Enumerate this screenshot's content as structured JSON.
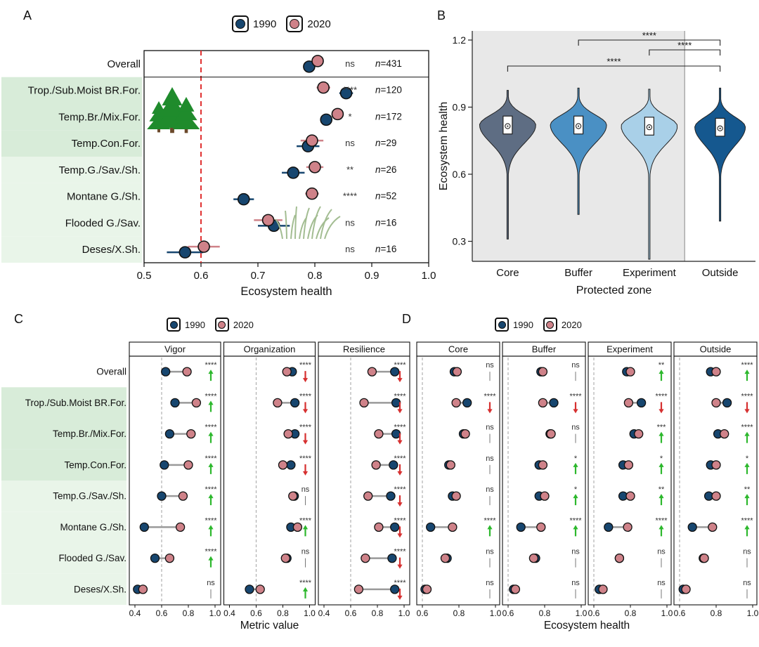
{
  "figure": {
    "panel_labels": {
      "A": "A",
      "B": "B",
      "C": "C",
      "D": "D"
    },
    "legend": {
      "y1990": "1990",
      "y2020": "2020"
    },
    "icons": {
      "forest": "forest-icon",
      "grassland": "grassland-icon"
    },
    "colors": {
      "c1990": "#17466f",
      "c2020": "#cf8289",
      "dotStroke": "#111111",
      "refRed": "#e03131",
      "bandForest": "#d8ecd9",
      "bandGrass": "#e9f5e9",
      "dumbbellLine": "#9a9a9a",
      "sigText": "#333333",
      "arrowUp": "#2db82d",
      "arrowDown": "#d63030",
      "grayBg": "#e8e8e8",
      "violin": {
        "core": "#5e6d83",
        "buffer": "#4a90c4",
        "experiment": "#a9d0e8",
        "outside": "#15588f"
      }
    }
  },
  "chart_data": [
    {
      "id": "A",
      "type": "scatter",
      "xlabel": "Ecosystem health",
      "xlim": [
        0.5,
        1.0
      ],
      "xticks": [
        "0.5",
        "0.6",
        "0.7",
        "0.8",
        "0.9",
        "1.0"
      ],
      "refline": 0.6,
      "series_labels": [
        "1990",
        "2020"
      ],
      "rows": [
        {
          "category": "Overall",
          "band": "none",
          "v1990": 0.79,
          "err1990": 0.008,
          "v2020": 0.805,
          "err2020": 0.008,
          "sig": "ns",
          "n": "431"
        },
        {
          "category": "Trop./Sub.Moist BR.For.",
          "band": "forest",
          "v1990": 0.855,
          "err1990": 0.012,
          "v2020": 0.815,
          "err2020": 0.012,
          "sig": "****",
          "n": "120"
        },
        {
          "category": "Temp.Br./Mix.For.",
          "band": "forest",
          "v1990": 0.82,
          "err1990": 0.01,
          "v2020": 0.84,
          "err2020": 0.01,
          "sig": "*",
          "n": "172"
        },
        {
          "category": "Temp.Con.For.",
          "band": "forest",
          "v1990": 0.788,
          "err1990": 0.02,
          "v2020": 0.795,
          "err2020": 0.02,
          "sig": "ns",
          "n": "29"
        },
        {
          "category": "Temp.G./Sav./Sh.",
          "band": "grass",
          "v1990": 0.762,
          "err1990": 0.02,
          "v2020": 0.8,
          "err2020": 0.015,
          "sig": "**",
          "n": "26"
        },
        {
          "category": "Montane G./Sh.",
          "band": "grass",
          "v1990": 0.675,
          "err1990": 0.018,
          "v2020": 0.795,
          "err2020": 0.012,
          "sig": "****",
          "n": "52"
        },
        {
          "category": "Flooded G./Sav.",
          "band": "grass",
          "v1990": 0.728,
          "err1990": 0.028,
          "v2020": 0.718,
          "err2020": 0.025,
          "sig": "ns",
          "n": "16"
        },
        {
          "category": "Deses/X.Sh.",
          "band": "grass",
          "v1990": 0.572,
          "err1990": 0.032,
          "v2020": 0.605,
          "err2020": 0.028,
          "sig": "ns",
          "n": "16"
        }
      ]
    },
    {
      "id": "B",
      "type": "violin",
      "xlabel": "Protected zone",
      "ylabel": "Ecosystem health",
      "ylim": [
        0.2,
        1.2
      ],
      "yticks": [
        "0.3",
        "0.6",
        "0.9",
        "1.2"
      ],
      "groups": [
        {
          "name": "Core",
          "fill": "core",
          "min": 0.31,
          "max": 0.975,
          "peak": 0.82,
          "q1": 0.78,
          "q3": 0.86,
          "mean": 0.815,
          "zone": "protected"
        },
        {
          "name": "Buffer",
          "fill": "buffer",
          "min": 0.42,
          "max": 0.985,
          "peak": 0.82,
          "q1": 0.78,
          "q3": 0.86,
          "mean": 0.815,
          "zone": "protected"
        },
        {
          "name": "Experiment",
          "fill": "experiment",
          "min": 0.22,
          "max": 0.98,
          "peak": 0.815,
          "q1": 0.775,
          "q3": 0.855,
          "mean": 0.81,
          "zone": "protected"
        },
        {
          "name": "Outside",
          "fill": "outside",
          "min": 0.39,
          "max": 0.985,
          "peak": 0.81,
          "q1": 0.77,
          "q3": 0.85,
          "mean": 0.805,
          "zone": "outside"
        }
      ],
      "comparisons": [
        {
          "from": "Buffer",
          "to": "Outside",
          "sig": "****"
        },
        {
          "from": "Experiment",
          "to": "Outside",
          "sig": "****"
        },
        {
          "from": "Core",
          "to": "Outside",
          "sig": "****"
        }
      ]
    },
    {
      "id": "C",
      "type": "scatter",
      "xlabel": "Metric value",
      "xlim": [
        0.4,
        1.0
      ],
      "xticks": [
        "0.4",
        "0.6",
        "0.8",
        "1.0"
      ],
      "refline": 0.6,
      "categories": [
        {
          "label": "Overall",
          "band": "none"
        },
        {
          "label": "Trop./Sub.Moist BR.For.",
          "band": "forest"
        },
        {
          "label": "Temp.Br./Mix.For.",
          "band": "forest"
        },
        {
          "label": "Temp.Con.For.",
          "band": "forest"
        },
        {
          "label": "Temp.G./Sav./Sh.",
          "band": "grass"
        },
        {
          "label": "Montane G./Sh.",
          "band": "grass"
        },
        {
          "label": "Flooded G./Sav.",
          "band": "grass"
        },
        {
          "label": "Deses/X.Sh.",
          "band": "grass"
        }
      ],
      "panels": [
        {
          "name": "Vigor",
          "rows": [
            {
              "v1990": 0.63,
              "v2020": 0.79,
              "sig": "****",
              "dir": "up"
            },
            {
              "v1990": 0.7,
              "v2020": 0.86,
              "sig": "****",
              "dir": "up"
            },
            {
              "v1990": 0.66,
              "v2020": 0.82,
              "sig": "****",
              "dir": "up"
            },
            {
              "v1990": 0.62,
              "v2020": 0.8,
              "sig": "****",
              "dir": "up"
            },
            {
              "v1990": 0.6,
              "v2020": 0.76,
              "sig": "****",
              "dir": "up"
            },
            {
              "v1990": 0.47,
              "v2020": 0.74,
              "sig": "****",
              "dir": "up"
            },
            {
              "v1990": 0.55,
              "v2020": 0.66,
              "sig": "****",
              "dir": "up"
            },
            {
              "v1990": 0.42,
              "v2020": 0.46,
              "sig": "ns",
              "dir": "none"
            }
          ]
        },
        {
          "name": "Organization",
          "rows": [
            {
              "v1990": 0.87,
              "v2020": 0.83,
              "sig": "****",
              "dir": "down"
            },
            {
              "v1990": 0.89,
              "v2020": 0.76,
              "sig": "****",
              "dir": "down"
            },
            {
              "v1990": 0.89,
              "v2020": 0.84,
              "sig": "****",
              "dir": "down"
            },
            {
              "v1990": 0.86,
              "v2020": 0.8,
              "sig": "****",
              "dir": "down"
            },
            {
              "v1990": 0.885,
              "v2020": 0.875,
              "sig": "ns",
              "dir": "none"
            },
            {
              "v1990": 0.86,
              "v2020": 0.91,
              "sig": "****",
              "dir": "up"
            },
            {
              "v1990": 0.83,
              "v2020": 0.82,
              "sig": "ns",
              "dir": "none"
            },
            {
              "v1990": 0.55,
              "v2020": 0.63,
              "sig": "****",
              "dir": "up"
            }
          ]
        },
        {
          "name": "Resilience",
          "rows": [
            {
              "v1990": 0.93,
              "v2020": 0.76,
              "sig": "****",
              "dir": "down"
            },
            {
              "v1990": 0.94,
              "v2020": 0.7,
              "sig": "****",
              "dir": "down"
            },
            {
              "v1990": 0.94,
              "v2020": 0.81,
              "sig": "****",
              "dir": "down"
            },
            {
              "v1990": 0.92,
              "v2020": 0.79,
              "sig": "****",
              "dir": "down"
            },
            {
              "v1990": 0.9,
              "v2020": 0.73,
              "sig": "****",
              "dir": "down"
            },
            {
              "v1990": 0.93,
              "v2020": 0.81,
              "sig": "****",
              "dir": "down"
            },
            {
              "v1990": 0.91,
              "v2020": 0.71,
              "sig": "****",
              "dir": "down"
            },
            {
              "v1990": 0.93,
              "v2020": 0.66,
              "sig": "****",
              "dir": "down"
            }
          ]
        }
      ]
    },
    {
      "id": "D",
      "type": "scatter",
      "xlabel": "Ecosystem health",
      "xlim": [
        0.6,
        1.0
      ],
      "xticks": [
        "0.6",
        "0.8",
        "1.0"
      ],
      "refline": 0.6,
      "panels": [
        {
          "name": "Core",
          "rows": [
            {
              "v1990": 0.775,
              "v2020": 0.79,
              "sig": "ns",
              "dir": "none"
            },
            {
              "v1990": 0.845,
              "v2020": 0.785,
              "sig": "****",
              "dir": "down"
            },
            {
              "v1990": 0.825,
              "v2020": 0.835,
              "sig": "ns",
              "dir": "none"
            },
            {
              "v1990": 0.745,
              "v2020": 0.755,
              "sig": "ns",
              "dir": "none"
            },
            {
              "v1990": 0.765,
              "v2020": 0.785,
              "sig": "ns",
              "dir": "none"
            },
            {
              "v1990": 0.645,
              "v2020": 0.765,
              "sig": "****",
              "dir": "up"
            },
            {
              "v1990": 0.735,
              "v2020": 0.725,
              "sig": "ns",
              "dir": "none",
              "err": 0.02
            },
            {
              "v1990": 0.615,
              "v2020": 0.625,
              "sig": "ns",
              "dir": "none",
              "err": 0.018
            }
          ]
        },
        {
          "name": "Buffer",
          "rows": [
            {
              "v1990": 0.78,
              "v2020": 0.79,
              "sig": "ns",
              "dir": "none"
            },
            {
              "v1990": 0.85,
              "v2020": 0.79,
              "sig": "****",
              "dir": "down"
            },
            {
              "v1990": 0.83,
              "v2020": 0.835,
              "sig": "ns",
              "dir": "none"
            },
            {
              "v1990": 0.77,
              "v2020": 0.79,
              "sig": "*",
              "dir": "up"
            },
            {
              "v1990": 0.77,
              "v2020": 0.8,
              "sig": "*",
              "dir": "up"
            },
            {
              "v1990": 0.67,
              "v2020": 0.78,
              "sig": "****",
              "dir": "up"
            },
            {
              "v1990": 0.75,
              "v2020": 0.74,
              "sig": "ns",
              "dir": "none",
              "err": 0.02
            },
            {
              "v1990": 0.63,
              "v2020": 0.64,
              "sig": "ns",
              "dir": "none",
              "err": 0.018
            }
          ]
        },
        {
          "name": "Experiment",
          "rows": [
            {
              "v1990": 0.78,
              "v2020": 0.8,
              "sig": "**",
              "dir": "up"
            },
            {
              "v1990": 0.86,
              "v2020": 0.79,
              "sig": "****",
              "dir": "down"
            },
            {
              "v1990": 0.82,
              "v2020": 0.845,
              "sig": "***",
              "dir": "up"
            },
            {
              "v1990": 0.76,
              "v2020": 0.79,
              "sig": "*",
              "dir": "up"
            },
            {
              "v1990": 0.76,
              "v2020": 0.8,
              "sig": "**",
              "dir": "up"
            },
            {
              "v1990": 0.68,
              "v2020": 0.785,
              "sig": "****",
              "dir": "up"
            },
            {
              "v1990": 0.74,
              "v2020": 0.74,
              "sig": "ns",
              "dir": "none",
              "err": 0.02
            },
            {
              "v1990": 0.63,
              "v2020": 0.65,
              "sig": "ns",
              "dir": "none",
              "err": 0.02
            }
          ]
        },
        {
          "name": "Outside",
          "rows": [
            {
              "v1990": 0.77,
              "v2020": 0.8,
              "sig": "****",
              "dir": "up"
            },
            {
              "v1990": 0.86,
              "v2020": 0.8,
              "sig": "****",
              "dir": "down"
            },
            {
              "v1990": 0.81,
              "v2020": 0.845,
              "sig": "****",
              "dir": "up"
            },
            {
              "v1990": 0.77,
              "v2020": 0.8,
              "sig": "*",
              "dir": "up"
            },
            {
              "v1990": 0.76,
              "v2020": 0.8,
              "sig": "**",
              "dir": "up"
            },
            {
              "v1990": 0.67,
              "v2020": 0.78,
              "sig": "****",
              "dir": "up"
            },
            {
              "v1990": 0.73,
              "v2020": 0.735,
              "sig": "ns",
              "dir": "none",
              "err": 0.02
            },
            {
              "v1990": 0.62,
              "v2020": 0.635,
              "sig": "ns",
              "dir": "none",
              "err": 0.018
            }
          ]
        }
      ]
    }
  ]
}
